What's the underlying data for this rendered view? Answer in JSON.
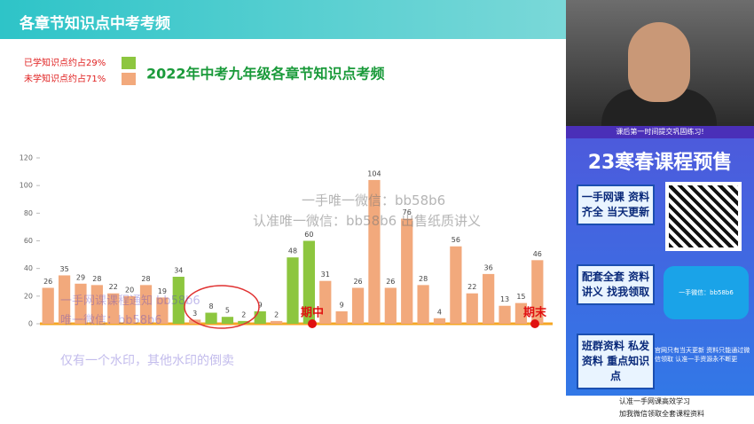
{
  "header": {
    "title": "各章节知识点中考考频"
  },
  "chart_data": {
    "type": "bar",
    "title": "2022年中考九年级各章节知识点考频",
    "legend": [
      {
        "label": "已学知识点约占29%",
        "color": "#8dc63f"
      },
      {
        "label": "未学知识点约占71%",
        "color": "#f2a97c"
      }
    ],
    "categories": [
      null,
      null,
      null,
      null,
      null,
      null,
      null,
      null,
      null,
      null,
      null,
      null,
      null,
      null,
      null,
      null,
      null,
      null,
      null,
      null,
      null,
      null,
      null,
      null,
      null,
      null,
      null,
      null,
      null,
      null,
      null
    ],
    "values": [
      26,
      35,
      29,
      28,
      22,
      20,
      28,
      19,
      34,
      3,
      8,
      5,
      2,
      9,
      2,
      48,
      60,
      31,
      9,
      26,
      104,
      26,
      76,
      28,
      4,
      56,
      22,
      36,
      13,
      15,
      46
    ],
    "colors": [
      "#f2a97c",
      "#f2a97c",
      "#f2a97c",
      "#f2a97c",
      "#f2a97c",
      "#f2a97c",
      "#f2a97c",
      "#f2a97c",
      "#8dc63f",
      "#f2a97c",
      "#8dc63f",
      "#8dc63f",
      "#8dc63f",
      "#8dc63f",
      "#f2a97c",
      "#8dc63f",
      "#8dc63f",
      "#f2a97c",
      "#f2a97c",
      "#f2a97c",
      "#f2a97c",
      "#f2a97c",
      "#f2a97c",
      "#f2a97c",
      "#f2a97c",
      "#f2a97c",
      "#f2a97c",
      "#f2a97c",
      "#f2a97c",
      "#f2a97c",
      "#f2a97c"
    ],
    "ylim": [
      0,
      120
    ],
    "yticks": [
      0,
      20,
      40,
      60,
      80,
      100,
      120
    ],
    "grid": false,
    "annotations": [
      "期中",
      "期末"
    ]
  },
  "watermarks": [
    "一手唯一微信：bb58b6",
    "认准唯一微信：bb58b6 出售纸质讲义",
    "一手网课课程通知 bb58b6",
    "唯一微信：bb58b6",
    "仅有一个水印，其他水印的倒卖"
  ],
  "sidebar": {
    "tip": "课后第一时间提交巩固练习!",
    "promo": "23寒春课程预售",
    "boxes": [
      "一手网课 资料齐全 当天更新",
      "配套全套 资料讲义 找我领取",
      "班群资料 私发资料 重点知识点"
    ],
    "car": "一手微信：bb58b6",
    "note": "官网只有当天更新 资料只能通过微信领取 认准一手资源永不断更",
    "footer": [
      "认准一手网课高效学习",
      "加我微信领取全套课程资料"
    ]
  }
}
